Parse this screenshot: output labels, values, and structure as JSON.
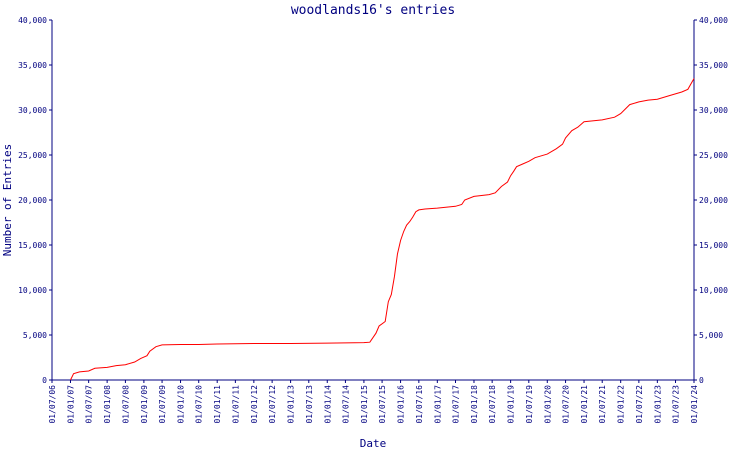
{
  "chart_data": {
    "type": "line",
    "title": "woodlands16's entries",
    "xlabel": "Date",
    "ylabel": "Number of Entries",
    "ylim": [
      0,
      40000
    ],
    "yticks": [
      0,
      5000,
      10000,
      15000,
      20000,
      25000,
      30000,
      35000,
      40000
    ],
    "ytick_labels": [
      "0",
      "5,000",
      "10,000",
      "15,000",
      "20,000",
      "25,000",
      "30,000",
      "35,000",
      "40,000"
    ],
    "xlim": [
      "2006-07-01",
      "2024-01-01"
    ],
    "xticks": [
      "2006-07-01",
      "2007-01-01",
      "2007-07-01",
      "2008-01-01",
      "2008-07-01",
      "2009-01-01",
      "2009-07-01",
      "2010-01-01",
      "2010-07-01",
      "2011-01-01",
      "2011-07-01",
      "2012-01-01",
      "2012-07-01",
      "2013-01-01",
      "2013-07-01",
      "2014-01-01",
      "2014-07-01",
      "2015-01-01",
      "2015-07-01",
      "2016-01-01",
      "2016-07-01",
      "2017-01-01",
      "2017-07-01",
      "2018-01-01",
      "2018-07-01",
      "2019-01-01",
      "2019-07-01",
      "2020-01-01",
      "2020-07-01",
      "2021-01-01",
      "2021-07-01",
      "2022-01-01",
      "2022-07-01",
      "2023-01-01",
      "2023-07-01",
      "2024-01-01"
    ],
    "xtick_labels": [
      "01/07/06",
      "01/01/07",
      "01/07/07",
      "01/01/08",
      "01/07/08",
      "01/01/09",
      "01/07/09",
      "01/01/10",
      "01/07/10",
      "01/01/11",
      "01/07/11",
      "01/01/12",
      "01/07/12",
      "01/01/13",
      "01/07/13",
      "01/01/14",
      "01/07/14",
      "01/01/15",
      "01/07/15",
      "01/01/16",
      "01/07/16",
      "01/01/17",
      "01/07/17",
      "01/01/18",
      "01/07/18",
      "01/01/19",
      "01/07/19",
      "01/01/20",
      "01/07/20",
      "01/01/21",
      "01/07/21",
      "01/01/22",
      "01/07/22",
      "01/01/23",
      "01/07/23",
      "01/01/24"
    ],
    "grid": false,
    "series": [
      {
        "name": "",
        "color": "#ff0000",
        "x": [
          "2007-01-01",
          "2007-02-01",
          "2007-04-01",
          "2007-07-01",
          "2007-09-01",
          "2008-01-01",
          "2008-04-01",
          "2008-07-01",
          "2008-10-01",
          "2008-12-01",
          "2009-02-01",
          "2009-03-01",
          "2009-05-01",
          "2009-07-01",
          "2010-01-01",
          "2010-07-01",
          "2011-01-01",
          "2012-01-01",
          "2013-01-01",
          "2014-01-01",
          "2015-01-01",
          "2015-03-01",
          "2015-05-01",
          "2015-06-01",
          "2015-08-01",
          "2015-09-01",
          "2015-10-01",
          "2015-11-01",
          "2015-12-01",
          "2016-01-01",
          "2016-02-01",
          "2016-03-01",
          "2016-04-01",
          "2016-05-01",
          "2016-06-01",
          "2016-07-01",
          "2016-09-01",
          "2017-01-01",
          "2017-07-01",
          "2017-09-01",
          "2017-10-01",
          "2018-01-01",
          "2018-06-01",
          "2018-08-01",
          "2018-10-01",
          "2018-12-01",
          "2019-01-01",
          "2019-02-01",
          "2019-03-01",
          "2019-05-01",
          "2019-07-01",
          "2019-09-01",
          "2020-01-01",
          "2020-04-01",
          "2020-06-01",
          "2020-07-01",
          "2020-09-01",
          "2020-11-01",
          "2021-01-01",
          "2021-07-01",
          "2021-11-01",
          "2021-12-01",
          "2022-01-01",
          "2022-04-01",
          "2022-07-01",
          "2022-10-01",
          "2023-01-01",
          "2023-05-01",
          "2023-09-01",
          "2023-11-01",
          "2024-01-01"
        ],
        "y": [
          0,
          700,
          900,
          1000,
          1300,
          1400,
          1600,
          1700,
          2000,
          2400,
          2700,
          3200,
          3700,
          3900,
          3950,
          3950,
          4000,
          4050,
          4050,
          4100,
          4150,
          4200,
          5200,
          6000,
          6500,
          8700,
          9500,
          11500,
          14000,
          15500,
          16500,
          17200,
          17600,
          18100,
          18700,
          18900,
          19000,
          19100,
          19300,
          19500,
          20000,
          20400,
          20600,
          20800,
          21500,
          22000,
          22700,
          23200,
          23700,
          24000,
          24300,
          24700,
          25100,
          25700,
          26200,
          26900,
          27700,
          28100,
          28700,
          28900,
          29200,
          29400,
          29600,
          30600,
          30900,
          31100,
          31200,
          31600,
          32000,
          32300,
          33500
        ]
      }
    ]
  }
}
